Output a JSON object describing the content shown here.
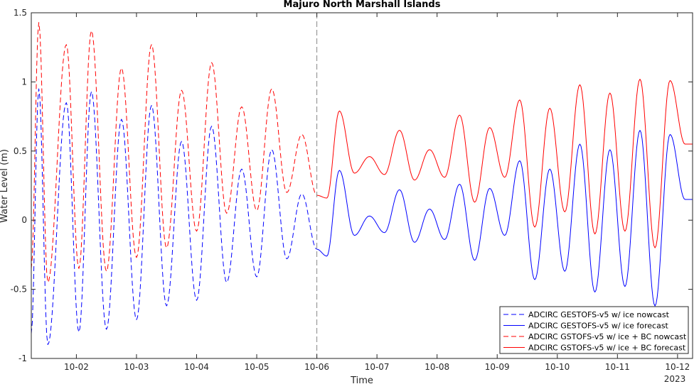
{
  "chart_data": {
    "type": "line",
    "title": "Majuro North Marshall Islands",
    "xlabel": "Time",
    "ylabel": "Water Level (m)",
    "year_label": "2023",
    "x_range": [
      "2023-10-01 06:00",
      "2023-10-12 06:00"
    ],
    "ylim": [
      -1,
      1.5
    ],
    "yticks": [
      -1,
      -0.5,
      0,
      0.5,
      1,
      1.5
    ],
    "ytick_labels": [
      "-1",
      "-0.5",
      "0",
      "0.5",
      "1",
      "1.5"
    ],
    "xticks": [
      "2023-10-02",
      "2023-10-03",
      "2023-10-04",
      "2023-10-05",
      "2023-10-06",
      "2023-10-07",
      "2023-10-08",
      "2023-10-09",
      "2023-10-10",
      "2023-10-11",
      "2023-10-12"
    ],
    "xtick_labels": [
      "10-02",
      "10-03",
      "10-04",
      "10-05",
      "10-06",
      "10-07",
      "10-08",
      "10-09",
      "10-10",
      "10-11",
      "10-12"
    ],
    "forecast_start": "2023-10-06",
    "grid": false,
    "legend_position": "bottom-right",
    "colors": {
      "blue": "#0000ff",
      "red": "#ff0000",
      "marker_line": "#888888"
    },
    "series": [
      {
        "name": "ADCIRC GESTOFS-v5 w/ ice nowcast",
        "color": "#0000ff",
        "style": "dashed",
        "x": [
          "2023-10-01 06:00",
          "2023-10-01 09:00",
          "2023-10-01 12:36",
          "2023-10-01 20:00",
          "2023-10-02 01:00",
          "2023-10-02 06:00",
          "2023-10-02 12:00",
          "2023-10-02 18:00",
          "2023-10-03 00:00",
          "2023-10-03 06:00",
          "2023-10-03 12:00",
          "2023-10-03 18:00",
          "2023-10-04 00:00",
          "2023-10-04 06:00",
          "2023-10-04 12:00",
          "2023-10-04 18:00",
          "2023-10-05 00:00",
          "2023-10-05 06:00",
          "2023-10-05 12:00",
          "2023-10-05 18:00",
          "2023-10-06 00:00"
        ],
        "y": [
          -0.82,
          0.95,
          -0.9,
          0.85,
          -0.81,
          0.93,
          -0.79,
          0.73,
          -0.72,
          0.83,
          -0.62,
          0.57,
          -0.58,
          0.68,
          -0.45,
          0.37,
          -0.41,
          0.51,
          -0.28,
          0.19,
          -0.21
        ]
      },
      {
        "name": "ADCIRC GESTOFS-v5 w/ ice forecast",
        "color": "#0000ff",
        "style": "solid",
        "x": [
          "2023-10-06 00:00",
          "2023-10-06 04:00",
          "2023-10-06 09:00",
          "2023-10-06 15:00",
          "2023-10-06 21:00",
          "2023-10-07 03:00",
          "2023-10-07 09:00",
          "2023-10-07 15:00",
          "2023-10-07 21:00",
          "2023-10-08 03:00",
          "2023-10-08 09:00",
          "2023-10-08 15:00",
          "2023-10-08 21:00",
          "2023-10-09 03:00",
          "2023-10-09 09:00",
          "2023-10-09 15:00",
          "2023-10-09 21:00",
          "2023-10-10 03:00",
          "2023-10-10 09:00",
          "2023-10-10 15:00",
          "2023-10-10 21:00",
          "2023-10-11 03:00",
          "2023-10-11 09:00",
          "2023-10-11 15:00",
          "2023-10-11 21:00",
          "2023-10-12 03:00",
          "2023-10-12 06:00"
        ],
        "y": [
          -0.21,
          -0.26,
          0.36,
          -0.11,
          0.03,
          -0.09,
          0.22,
          -0.16,
          0.08,
          -0.14,
          0.26,
          -0.29,
          0.23,
          -0.11,
          0.43,
          -0.43,
          0.37,
          -0.37,
          0.55,
          -0.52,
          0.51,
          -0.48,
          0.65,
          -0.62,
          0.62,
          0.15,
          0.15
        ]
      },
      {
        "name": "ADCIRC GSTOFS-v5 w/ ice + BC nowcast",
        "color": "#ff0000",
        "style": "dashed",
        "x": [
          "2023-10-01 06:00",
          "2023-10-01 09:00",
          "2023-10-01 12:36",
          "2023-10-01 20:00",
          "2023-10-02 01:00",
          "2023-10-02 06:00",
          "2023-10-02 12:00",
          "2023-10-02 18:00",
          "2023-10-03 00:00",
          "2023-10-03 06:00",
          "2023-10-03 12:00",
          "2023-10-03 18:00",
          "2023-10-04 00:00",
          "2023-10-04 06:00",
          "2023-10-04 12:00",
          "2023-10-04 18:00",
          "2023-10-05 00:00",
          "2023-10-05 06:00",
          "2023-10-05 12:00",
          "2023-10-05 18:00",
          "2023-10-06 00:00"
        ],
        "y": [
          -0.35,
          1.43,
          -0.45,
          1.27,
          -0.35,
          1.37,
          -0.37,
          1.1,
          -0.27,
          1.27,
          -0.2,
          0.94,
          -0.08,
          1.14,
          0.05,
          0.82,
          0.07,
          0.95,
          0.2,
          0.62,
          0.18
        ]
      },
      {
        "name": "ADCIRC GSTOFS-v5 w/ ice + BC forecast",
        "color": "#ff0000",
        "style": "solid",
        "x": [
          "2023-10-06 00:00",
          "2023-10-06 04:00",
          "2023-10-06 09:00",
          "2023-10-06 15:00",
          "2023-10-06 21:00",
          "2023-10-07 03:00",
          "2023-10-07 09:00",
          "2023-10-07 15:00",
          "2023-10-07 21:00",
          "2023-10-08 03:00",
          "2023-10-08 09:00",
          "2023-10-08 15:00",
          "2023-10-08 21:00",
          "2023-10-09 03:00",
          "2023-10-09 09:00",
          "2023-10-09 15:00",
          "2023-10-09 21:00",
          "2023-10-10 03:00",
          "2023-10-10 09:00",
          "2023-10-10 15:00",
          "2023-10-10 21:00",
          "2023-10-11 03:00",
          "2023-10-11 09:00",
          "2023-10-11 15:00",
          "2023-10-11 21:00",
          "2023-10-12 03:00",
          "2023-10-12 06:00"
        ],
        "y": [
          0.18,
          0.16,
          0.79,
          0.34,
          0.46,
          0.33,
          0.65,
          0.29,
          0.51,
          0.31,
          0.76,
          0.13,
          0.67,
          0.31,
          0.87,
          -0.05,
          0.81,
          0.06,
          0.98,
          -0.1,
          0.92,
          -0.08,
          1.02,
          -0.2,
          1.01,
          0.55,
          0.55
        ]
      }
    ]
  }
}
